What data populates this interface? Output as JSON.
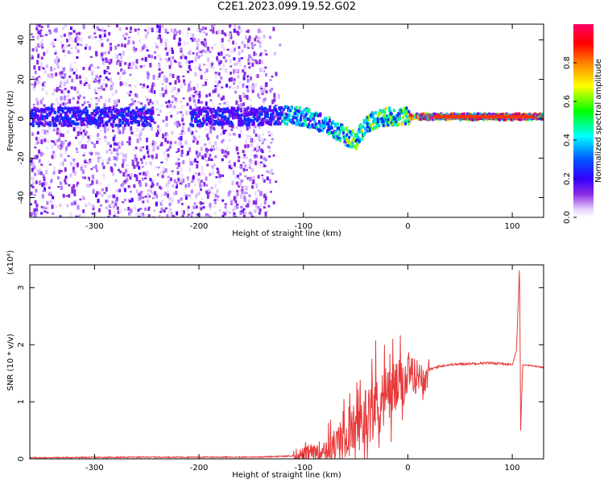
{
  "title": "C2E1.2023.099.19.52.G02",
  "colors": {
    "snr_line": "#e8393a",
    "low_amp": "#8a2be2"
  },
  "chart_data": [
    {
      "type": "heatmap",
      "xlabel": "Height of straight line (km)",
      "ylabel": "Frequency (Hz)",
      "xlim": [
        -362,
        130
      ],
      "ylim": [
        -50,
        48
      ],
      "x_ticks": [
        -300,
        -200,
        -100,
        0,
        100
      ],
      "y_ticks": [
        -40,
        -20,
        0,
        20,
        40
      ],
      "colorbar": {
        "label": "Normalized spectral amplitude",
        "range": [
          0,
          1
        ],
        "ticks": [
          0.0,
          0.2,
          0.4,
          0.6,
          0.8
        ],
        "colormap": [
          "#ffffff",
          "#e8d4ff",
          "#8a2be2",
          "#5a00ff",
          "#0000ff",
          "#00ffff",
          "#00ff00",
          "#ffff00",
          "#ff8000",
          "#ff0000",
          "#ff0066"
        ]
      },
      "ridge": [
        [
          -362,
          1
        ],
        [
          -300,
          1
        ],
        [
          -250,
          1
        ],
        [
          -200,
          1
        ],
        [
          -150,
          1
        ],
        [
          -120,
          2
        ],
        [
          -100,
          1
        ],
        [
          -80,
          -3
        ],
        [
          -70,
          -6
        ],
        [
          -60,
          -9
        ],
        [
          -50,
          -11
        ],
        [
          -45,
          -6
        ],
        [
          -40,
          -2
        ],
        [
          -30,
          0
        ],
        [
          -20,
          1
        ],
        [
          0,
          1
        ],
        [
          20,
          1
        ],
        [
          50,
          1
        ],
        [
          80,
          1
        ],
        [
          100,
          1
        ],
        [
          130,
          1
        ]
      ]
    },
    {
      "type": "line",
      "xlabel": "Height of straight line (km)",
      "ylabel": "SNR (10 * v/v)",
      "y_multiplier": "(x10⁴)",
      "xlim": [
        -362,
        130
      ],
      "ylim": [
        0,
        3.4
      ],
      "x_ticks": [
        -300,
        -200,
        -100,
        0,
        100
      ],
      "y_ticks": [
        0,
        1,
        2,
        3
      ],
      "series": [
        {
          "values": [
            [
              -362,
              0.02
            ],
            [
              -250,
              0.03
            ],
            [
              -200,
              0.03
            ],
            [
              -150,
              0.03
            ],
            [
              -110,
              0.05
            ],
            [
              -100,
              0.08
            ],
            [
              -90,
              0.12
            ],
            [
              -80,
              0.18
            ],
            [
              -70,
              0.25
            ],
            [
              -60,
              0.38
            ],
            [
              -50,
              0.55
            ],
            [
              -40,
              0.78
            ],
            [
              -30,
              0.98
            ],
            [
              -20,
              1.12
            ],
            [
              -10,
              1.28
            ],
            [
              0,
              1.38
            ],
            [
              10,
              1.48
            ],
            [
              20,
              1.56
            ],
            [
              30,
              1.62
            ],
            [
              40,
              1.65
            ],
            [
              60,
              1.67
            ],
            [
              80,
              1.68
            ],
            [
              95,
              1.66
            ],
            [
              100,
              1.64
            ],
            [
              104,
              1.9
            ],
            [
              107,
              3.4
            ],
            [
              108,
              0.5
            ],
            [
              110,
              1.65
            ],
            [
              120,
              1.63
            ],
            [
              130,
              1.6
            ]
          ]
        }
      ]
    }
  ]
}
